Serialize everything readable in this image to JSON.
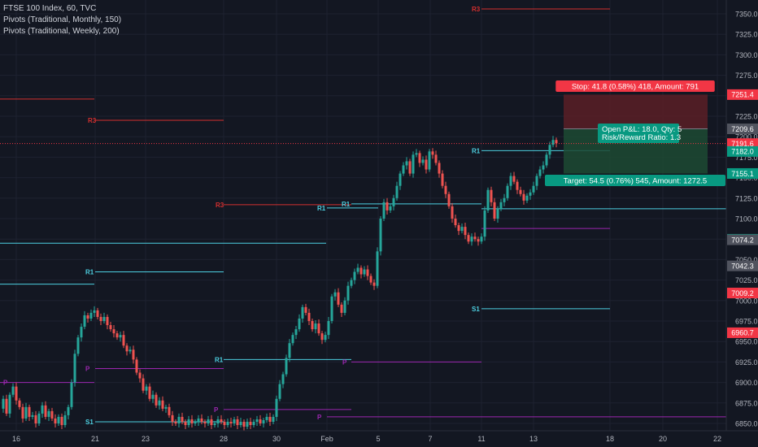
{
  "legend": {
    "symbol_line": "FTSE 100 Index, 60, TVC",
    "indicator_1": "Pivots (Traditional, Monthly, 150)",
    "indicator_2": "Pivots (Traditional, Weekly, 200)"
  },
  "colors": {
    "background": "#131722",
    "up": "#26a69a",
    "down": "#ef5350",
    "pivot_r": "#d32f2f",
    "pivot_s": "#4dd0e1",
    "pivot_p": "#9c27b0",
    "stop_zone": "#5b1f26",
    "target_zone": "#1d4a33"
  },
  "chart_data": {
    "type": "candlestick",
    "ylim": [
      6845,
      7360
    ],
    "y_ticks": [
      6850,
      6875,
      6900,
      6925,
      6950,
      6975,
      7000,
      7025,
      7050,
      7075,
      7100,
      7125,
      7150,
      7175,
      7200,
      7225,
      7250,
      7275,
      7300,
      7325,
      7350
    ],
    "x_tick_labels": [
      "16",
      "21",
      "23",
      "28",
      "30",
      "Feb",
      "5",
      "7",
      "11",
      "13",
      "18",
      "20",
      "22"
    ],
    "price_badges": [
      {
        "label": "7251.4",
        "value": 7251.4,
        "color": "#f23645"
      },
      {
        "label": "7209.6",
        "value": 7209.6,
        "color": "#50535e"
      },
      {
        "label": "7191.6",
        "value": 7191.6,
        "color": "#f23645"
      },
      {
        "label": "7182.0",
        "value": 7182.0,
        "color": "#089981"
      },
      {
        "label": "7155.1",
        "value": 7155.1,
        "color": "#089981"
      },
      {
        "label": "7074.8",
        "value": 7074.8,
        "color": "#089981"
      },
      {
        "label": "7074.2",
        "value": 7074.2,
        "color": "#50535e"
      },
      {
        "label": "7042.3",
        "value": 7042.3,
        "color": "#50535e"
      },
      {
        "label": "7009.2",
        "value": 7009.2,
        "color": "#f23645"
      },
      {
        "label": "6960.7",
        "value": 6960.7,
        "color": "#f23645"
      }
    ],
    "pivot_levels": [
      {
        "label": "",
        "kind": "r",
        "value": 7246
      },
      {
        "label": "R3",
        "kind": "r",
        "value": 7220
      },
      {
        "label": "R3",
        "kind": "r",
        "value": 7117
      },
      {
        "label": "R3",
        "kind": "r",
        "value": 7356
      },
      {
        "label": "",
        "kind": "s",
        "value": 7070
      },
      {
        "label": "",
        "kind": "s",
        "value": 7020
      },
      {
        "label": "R1",
        "kind": "s",
        "value": 7035
      },
      {
        "label": "R1",
        "kind": "s",
        "value": 7113
      },
      {
        "label": "R1",
        "kind": "s",
        "value": 7118
      },
      {
        "label": "R1",
        "kind": "s",
        "value": 7183
      },
      {
        "label": "",
        "kind": "s",
        "value": 7112
      },
      {
        "label": "S1",
        "kind": "s",
        "value": 6990
      },
      {
        "label": "R1",
        "kind": "s",
        "value": 6928
      },
      {
        "label": "S1",
        "kind": "s",
        "value": 6852
      },
      {
        "label": "P",
        "kind": "p",
        "value": 6900
      },
      {
        "label": "P",
        "kind": "p",
        "value": 6917
      },
      {
        "label": "P",
        "kind": "p",
        "value": 6925
      },
      {
        "label": "P",
        "kind": "p",
        "value": 6867
      },
      {
        "label": "P",
        "kind": "p",
        "value": 6858
      },
      {
        "label": "",
        "kind": "p",
        "value": 7088
      }
    ],
    "position": {
      "entry": 7209.6,
      "stop": 7251.4,
      "target": 7155.1,
      "stop_label": "Stop: 41.8 (0.58%) 418, Amount: 791",
      "target_label": "Target: 54.5 (0.76%) 545, Amount: 1272.5",
      "pnl_label": "Open P&L: 18.0, Qty: 5",
      "rr_label": "Risk/Reward Ratio: 1.3"
    },
    "last_price": 7191.6,
    "candles_note": "hourly candles, approx. path",
    "price_path": [
      [
        0,
        6868
      ],
      [
        4,
        6880
      ],
      [
        8,
        6862
      ],
      [
        12,
        6885
      ],
      [
        16,
        6895
      ],
      [
        20,
        6878
      ],
      [
        24,
        6870
      ],
      [
        28,
        6856
      ],
      [
        32,
        6870
      ],
      [
        36,
        6858
      ],
      [
        40,
        6860
      ],
      [
        44,
        6850
      ],
      [
        48,
        6862
      ],
      [
        52,
        6872
      ],
      [
        56,
        6858
      ],
      [
        60,
        6865
      ],
      [
        64,
        6856
      ],
      [
        68,
        6850
      ],
      [
        72,
        6858
      ],
      [
        76,
        6848
      ],
      [
        80,
        6860
      ],
      [
        84,
        6870
      ],
      [
        88,
        6900
      ],
      [
        92,
        6935
      ],
      [
        96,
        6955
      ],
      [
        100,
        6968
      ],
      [
        104,
        6982
      ],
      [
        108,
        6978
      ],
      [
        112,
        6985
      ],
      [
        116,
        6988
      ],
      [
        120,
        6980
      ],
      [
        124,
        6975
      ],
      [
        128,
        6980
      ],
      [
        132,
        6970
      ],
      [
        136,
        6965
      ],
      [
        140,
        6960
      ],
      [
        144,
        6955
      ],
      [
        148,
        6958
      ],
      [
        152,
        6945
      ],
      [
        156,
        6938
      ],
      [
        160,
        6940
      ],
      [
        164,
        6928
      ],
      [
        168,
        6912
      ],
      [
        172,
        6905
      ],
      [
        176,
        6890
      ],
      [
        180,
        6895
      ],
      [
        184,
        6880
      ],
      [
        188,
        6885
      ],
      [
        192,
        6872
      ],
      [
        196,
        6878
      ],
      [
        200,
        6868
      ],
      [
        204,
        6870
      ],
      [
        208,
        6860
      ],
      [
        212,
        6852
      ],
      [
        216,
        6850
      ],
      [
        220,
        6858
      ],
      [
        224,
        6852
      ],
      [
        228,
        6848
      ],
      [
        232,
        6855
      ],
      [
        236,
        6850
      ],
      [
        240,
        6852
      ],
      [
        244,
        6856
      ],
      [
        248,
        6852
      ],
      [
        252,
        6850
      ],
      [
        256,
        6855
      ],
      [
        260,
        6848
      ],
      [
        264,
        6850
      ],
      [
        268,
        6855
      ],
      [
        272,
        6852
      ],
      [
        276,
        6848
      ],
      [
        280,
        6852
      ],
      [
        284,
        6850
      ],
      [
        288,
        6855
      ],
      [
        292,
        6848
      ],
      [
        296,
        6852
      ],
      [
        300,
        6846
      ],
      [
        304,
        6852
      ],
      [
        308,
        6848
      ],
      [
        312,
        6852
      ],
      [
        316,
        6855
      ],
      [
        320,
        6850
      ],
      [
        324,
        6854
      ],
      [
        328,
        6858
      ],
      [
        332,
        6852
      ],
      [
        336,
        6858
      ],
      [
        340,
        6880
      ],
      [
        344,
        6898
      ],
      [
        348,
        6910
      ],
      [
        352,
        6930
      ],
      [
        356,
        6948
      ],
      [
        360,
        6958
      ],
      [
        364,
        6965
      ],
      [
        368,
        6978
      ],
      [
        372,
        6992
      ],
      [
        376,
        6985
      ],
      [
        380,
        6975
      ],
      [
        384,
        6965
      ],
      [
        388,
        6972
      ],
      [
        392,
        6960
      ],
      [
        396,
        6952
      ],
      [
        400,
        6958
      ],
      [
        404,
        6975
      ],
      [
        408,
        7005
      ],
      [
        412,
        7010
      ],
      [
        416,
        6995
      ],
      [
        420,
        6985
      ],
      [
        424,
        7000
      ],
      [
        428,
        7018
      ],
      [
        432,
        7025
      ],
      [
        436,
        7035
      ],
      [
        440,
        7040
      ],
      [
        444,
        7032
      ],
      [
        448,
        7038
      ],
      [
        452,
        7030
      ],
      [
        456,
        7022
      ],
      [
        460,
        7018
      ],
      [
        464,
        7060
      ],
      [
        468,
        7100
      ],
      [
        472,
        7120
      ],
      [
        476,
        7110
      ],
      [
        480,
        7115
      ],
      [
        484,
        7125
      ],
      [
        488,
        7140
      ],
      [
        492,
        7155
      ],
      [
        496,
        7165
      ],
      [
        500,
        7170
      ],
      [
        504,
        7155
      ],
      [
        508,
        7178
      ],
      [
        512,
        7180
      ],
      [
        516,
        7168
      ],
      [
        520,
        7172
      ],
      [
        524,
        7160
      ],
      [
        528,
        7182
      ],
      [
        532,
        7178
      ],
      [
        536,
        7168
      ],
      [
        540,
        7155
      ],
      [
        544,
        7140
      ],
      [
        548,
        7130
      ],
      [
        552,
        7115
      ],
      [
        556,
        7100
      ],
      [
        560,
        7092
      ],
      [
        564,
        7085
      ],
      [
        568,
        7090
      ],
      [
        572,
        7080
      ],
      [
        576,
        7072
      ],
      [
        580,
        7078
      ],
      [
        584,
        7075
      ],
      [
        588,
        7072
      ],
      [
        592,
        7078
      ],
      [
        596,
        7110
      ],
      [
        600,
        7135
      ],
      [
        604,
        7120
      ],
      [
        608,
        7100
      ],
      [
        612,
        7112
      ],
      [
        616,
        7120
      ],
      [
        620,
        7125
      ],
      [
        624,
        7140
      ],
      [
        628,
        7152
      ],
      [
        632,
        7145
      ],
      [
        636,
        7135
      ],
      [
        640,
        7130
      ],
      [
        644,
        7122
      ],
      [
        648,
        7128
      ],
      [
        652,
        7132
      ],
      [
        656,
        7140
      ],
      [
        660,
        7152
      ],
      [
        664,
        7160
      ],
      [
        668,
        7165
      ],
      [
        672,
        7178
      ],
      [
        676,
        7190
      ],
      [
        680,
        7196
      ],
      [
        684,
        7192
      ]
    ]
  }
}
